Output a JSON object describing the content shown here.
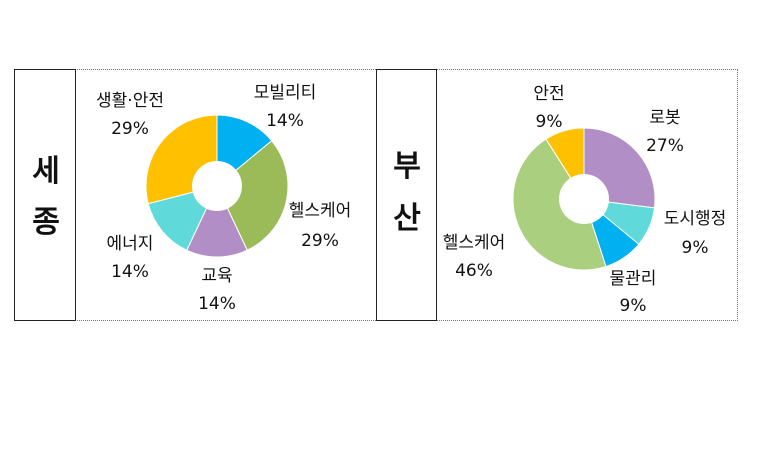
{
  "cities": [
    {
      "name_line1": "세",
      "name_line2": "종"
    },
    {
      "name_line1": "부",
      "name_line2": "산"
    }
  ],
  "chart_data": [
    {
      "type": "pie",
      "title": "",
      "slices": [
        {
          "label": "모빌리티",
          "value": 14,
          "value_label": "14%",
          "color": "#00b0f0"
        },
        {
          "label": "헬스케어",
          "value": 29,
          "value_label": "29%",
          "color": "#9bbb59"
        },
        {
          "label": "교육",
          "value": 14,
          "value_label": "14%",
          "color": "#b18fc6"
        },
        {
          "label": "에너지",
          "value": 14,
          "value_label": "14%",
          "color": "#5fd9d9"
        },
        {
          "label": "생활·안전",
          "value": 29,
          "value_label": "29%",
          "color": "#ffc000"
        }
      ]
    },
    {
      "type": "pie",
      "title": "",
      "slices": [
        {
          "label": "로봇",
          "value": 27,
          "value_label": "27%",
          "color": "#b18fc6"
        },
        {
          "label": "도시행정",
          "value": 9,
          "value_label": "9%",
          "color": "#5fd9d9"
        },
        {
          "label": "물관리",
          "value": 9,
          "value_label": "9%",
          "color": "#00b0f0"
        },
        {
          "label": "헬스케어",
          "value": 46,
          "value_label": "46%",
          "color": "#a9cf7f"
        },
        {
          "label": "안전",
          "value": 9,
          "value_label": "9%",
          "color": "#ffc000"
        }
      ]
    }
  ]
}
